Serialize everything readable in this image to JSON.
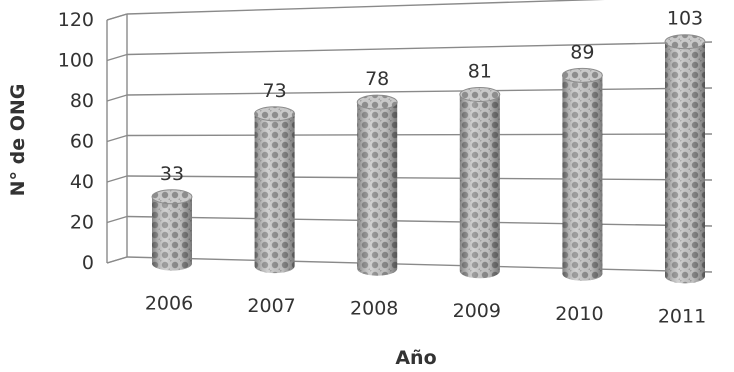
{
  "chart_data": {
    "type": "bar",
    "style": "3d-cylinder",
    "categories": [
      "2006",
      "2007",
      "2008",
      "2009",
      "2010",
      "2011"
    ],
    "values": [
      33,
      73,
      78,
      81,
      89,
      103
    ],
    "data_labels": [
      "33",
      "73",
      "78",
      "81",
      "89",
      "103"
    ],
    "title": "",
    "xlabel": "Año",
    "ylabel": "N° de ONG",
    "ylim": [
      0,
      120
    ],
    "yticks": [
      0,
      20,
      40,
      60,
      80,
      100,
      120
    ],
    "ytick_labels": [
      "0",
      "20",
      "40",
      "60",
      "80",
      "100",
      "120"
    ],
    "grid": true,
    "legend": "none",
    "colors": {
      "bar_fill": "#b8b8b8",
      "bar_pattern": "#7a7a7a",
      "grid": "#8a8a8a",
      "text": "#333333"
    }
  }
}
